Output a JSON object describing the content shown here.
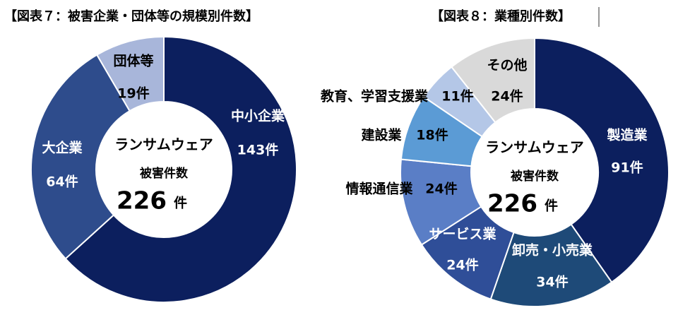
{
  "chart_data": [
    {
      "type": "donut",
      "title": "【図表７：被害企業・団体等の規模別件数】",
      "center": {
        "line1": "ランサムウェア",
        "line2": "被害件数",
        "total": 226,
        "unit": "件"
      },
      "categories": [
        "中小企業",
        "大企業",
        "団体等"
      ],
      "values": [
        143,
        64,
        19
      ],
      "value_labels": [
        "143件",
        "64件",
        "19件"
      ],
      "colors": [
        "#0c1f5e",
        "#2e4c8c",
        "#a8b6da"
      ]
    },
    {
      "type": "donut",
      "title": "【図表８：業種別件数】",
      "center": {
        "line1": "ランサムウェア",
        "line2": "被害件数",
        "total": 226,
        "unit": "件"
      },
      "categories": [
        "製造業",
        "卸売・小売業",
        "サービス業",
        "情報通信業",
        "建設業",
        "教育、学習支援業",
        "その他"
      ],
      "values": [
        91,
        34,
        24,
        24,
        18,
        11,
        24
      ],
      "value_labels": [
        "91件",
        "34件",
        "24件",
        "24件",
        "18件",
        "11件",
        "24件"
      ],
      "colors": [
        "#0c1f5e",
        "#1e4a78",
        "#2f4e98",
        "#5a7ec6",
        "#5b9bd5",
        "#b4c7e7",
        "#d9d9d9"
      ]
    }
  ]
}
